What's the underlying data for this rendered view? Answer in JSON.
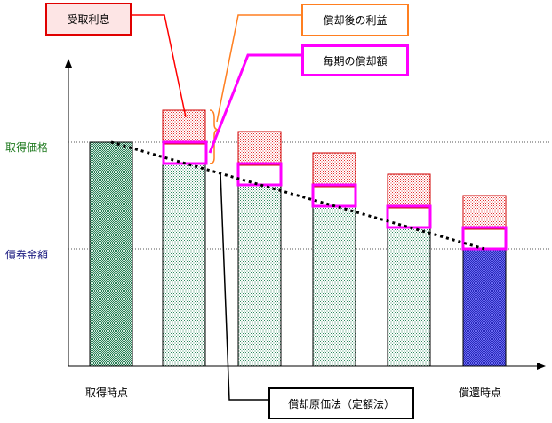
{
  "y_axis": {
    "acquisition_price_label": "取得価格",
    "face_value_label": "債券金額"
  },
  "x_axis": {
    "start_label": "取得時点",
    "end_label": "償還時点"
  },
  "legend": {
    "interest_received": "受取利息",
    "profit_after_amortization": "償却後の利益",
    "periodic_amortization": "毎期の償却額",
    "amortized_cost_method": "償却原価法（定額法）"
  },
  "colors": {
    "start_bar": "#4f9b7a",
    "period_bar": "#5fae88",
    "final_bar": "#3b3bd6",
    "interest_fill": "#ee3030",
    "amortization_box": "#ff00ff",
    "profit_callout": "#ff7f20",
    "interest_callout": "#ff0000",
    "acquisition_label_color": "#1f7a1f",
    "face_label_color": "#1a1a80"
  },
  "icons": {
    "trend_line": "dotted-decline-line"
  }
}
